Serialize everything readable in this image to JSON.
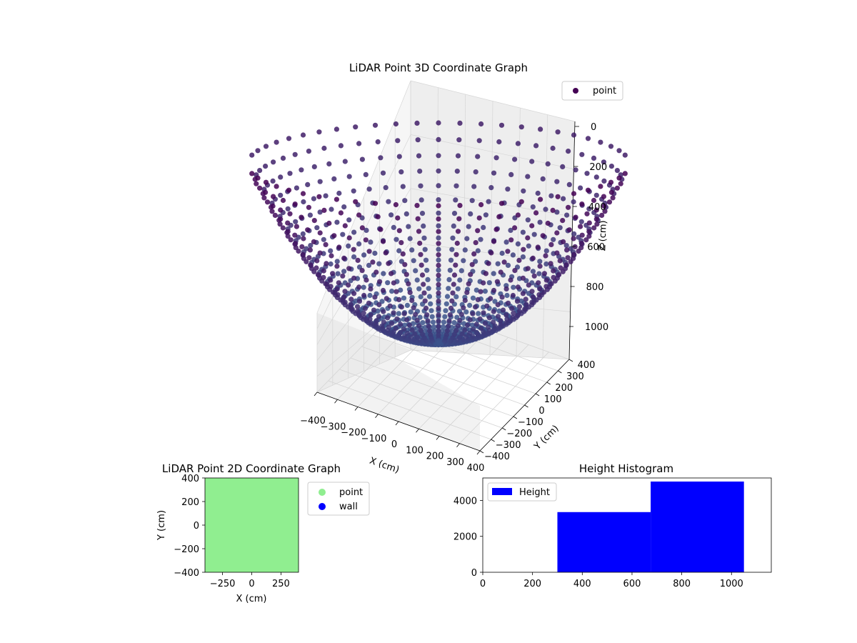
{
  "chart_data": [
    {
      "type": "scatter3d",
      "title": "LiDAR Point 3D Coordinate Graph",
      "xlabel": "X (cm)",
      "ylabel": "Y (cm)",
      "zlabel": "Z (cm)",
      "xticks": [
        "−400",
        "−300",
        "−200",
        "−100",
        "0",
        "100",
        "200",
        "300",
        "400"
      ],
      "yticks": [
        "−400",
        "−300",
        "−200",
        "−100",
        "0",
        "100",
        "200",
        "300",
        "400"
      ],
      "zticks": [
        "0",
        "200",
        "400",
        "600",
        "800",
        "1000"
      ],
      "xlim": [
        -400,
        400
      ],
      "ylim": [
        -400,
        400
      ],
      "zlim": [
        0,
        1050
      ],
      "zaxis_inverted": true,
      "grid": true,
      "legend": {
        "position": "top-right",
        "entries": [
          "point"
        ]
      },
      "series": [
        {
          "name": "point",
          "shape": "bowl",
          "rim_radius": 400,
          "rim_depth": 280,
          "center_depth": 1050,
          "color_start": "#440154",
          "color_end": "#3b528b"
        }
      ]
    },
    {
      "type": "scatter",
      "title": "LiDAR Point 2D Coordinate Graph",
      "xlabel": "X (cm)",
      "ylabel": "Y (cm)",
      "xticks": [
        -250,
        0,
        250
      ],
      "yticks": [
        -400,
        -200,
        0,
        200,
        400
      ],
      "xlim": [
        -400,
        400
      ],
      "ylim": [
        -400,
        400
      ],
      "legend": {
        "position": "outside-right",
        "entries": [
          "point",
          "wall"
        ]
      },
      "series": [
        {
          "name": "point",
          "color": "#90ee90",
          "fill_area": true
        },
        {
          "name": "wall",
          "color": "#0000ff"
        }
      ]
    },
    {
      "type": "bar",
      "title": "Height Histogram",
      "xticks": [
        0,
        200,
        400,
        600,
        800,
        1000
      ],
      "yticks": [
        0,
        2000,
        4000
      ],
      "xlim": [
        0,
        1160
      ],
      "ylim": [
        0,
        5250
      ],
      "legend": {
        "position": "top-left",
        "entries": [
          "Height"
        ]
      },
      "series": [
        {
          "name": "Height",
          "color": "#0000ff",
          "bins": [
            {
              "x0": 300,
              "x1": 675,
              "count": 3350
            },
            {
              "x0": 675,
              "x1": 1050,
              "count": 5050
            }
          ]
        }
      ]
    }
  ]
}
